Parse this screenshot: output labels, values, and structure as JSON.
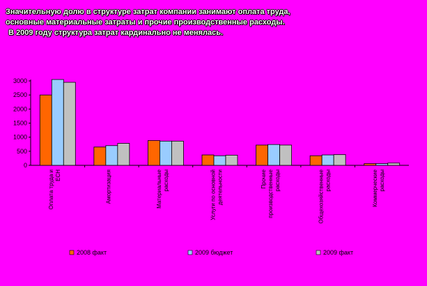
{
  "heading": {
    "line1": "Значительную долю в структуре затрат компании занимают оплата труда,",
    "line2": "основные материальные затраты и прочие производственные расходы.",
    "line3": "В 2009 году структура затрат кардинально не менялась."
  },
  "chart_data": {
    "type": "bar",
    "categories": [
      [
        "Оплата труда и",
        "ЕСН"
      ],
      [
        "Амортизация"
      ],
      [
        "Материальные",
        "расходы"
      ],
      [
        "Услуги по основной",
        "деятельности"
      ],
      [
        "Прочие",
        "производственные",
        "расходы"
      ],
      [
        "Общехозяйственные",
        "расходы"
      ],
      [
        "Коммерческие",
        "расходы"
      ]
    ],
    "series": [
      {
        "name": "2008 факт",
        "color": "#FF6600",
        "values": [
          2500,
          650,
          880,
          370,
          720,
          340,
          60
        ]
      },
      {
        "name": "2009 бюджет",
        "color": "#99CCFF",
        "values": [
          3050,
          700,
          860,
          340,
          740,
          370,
          60
        ]
      },
      {
        "name": "2009 факт",
        "color": "#C0C0C0",
        "values": [
          2950,
          780,
          860,
          360,
          720,
          380,
          80
        ]
      }
    ],
    "yticks": [
      "0",
      "500",
      "1000",
      "1500",
      "2000",
      "2500",
      "3000"
    ],
    "ylim": [
      0,
      3000
    ],
    "grid": false,
    "legend": "bottom",
    "title": "",
    "xlabel": "",
    "ylabel": ""
  }
}
